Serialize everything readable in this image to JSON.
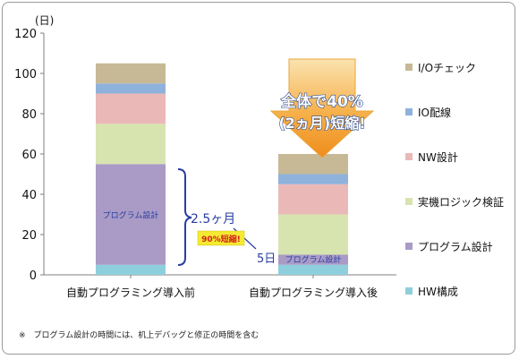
{
  "chart_data": {
    "type": "bar",
    "stacked": true,
    "y_unit": "(日)",
    "ylim": [
      0,
      120
    ],
    "yticks": [
      0,
      20,
      40,
      60,
      80,
      100,
      120
    ],
    "grid": false,
    "legend_position": "right",
    "categories": [
      "自動プログラミング導入前",
      "自動プログラミング導入後"
    ],
    "series": [
      {
        "name": "HW構成",
        "color": "#8ecfdd",
        "values": [
          5,
          5
        ]
      },
      {
        "name": "プログラム設計",
        "color": "#a99bc6",
        "values": [
          50,
          5
        ]
      },
      {
        "name": "実機ロジック検証",
        "color": "#d7e4b0",
        "values": [
          20,
          20
        ]
      },
      {
        "name": "NW設計",
        "color": "#ebb8b8",
        "values": [
          15,
          15
        ]
      },
      {
        "name": "IO配線",
        "color": "#8fb2dc",
        "values": [
          5,
          5
        ]
      },
      {
        "name": "I/Oチェック",
        "color": "#c7b996",
        "values": [
          10,
          10
        ]
      }
    ],
    "annotations": {
      "bar_label_before": "プログラム設計",
      "bar_label_after": "プログラム設計",
      "duration_before": "2.5ヶ月",
      "duration_after": "5日",
      "reduction_badge": "90%短縮!",
      "arrow_line1": "全体で40%",
      "arrow_line2": "(2ヵ月)短縮!"
    }
  },
  "footnote": "※　プログラム設計の時間には、机上デバッグと修正の時間を含む"
}
